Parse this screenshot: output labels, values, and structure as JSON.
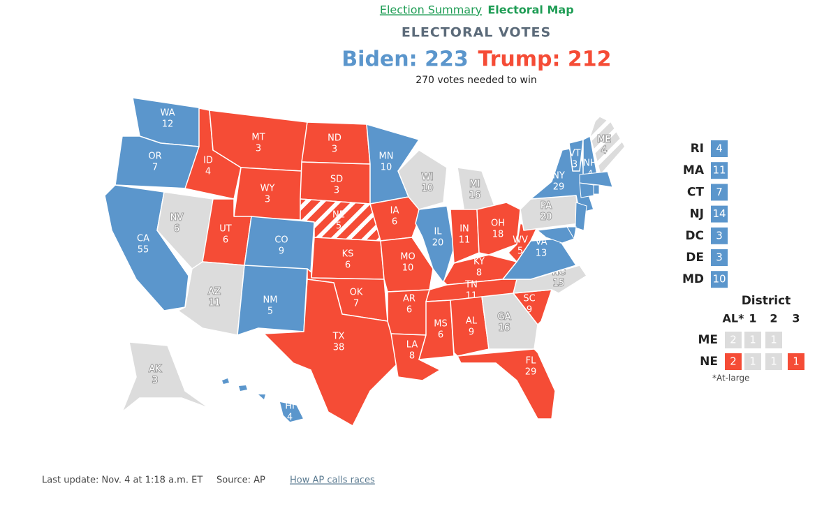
{
  "header": {
    "summary_link": "Election Summary",
    "map_link": "Electoral Map",
    "title": "ELECTORAL VOTES",
    "biden": "Biden: 223",
    "trump": "Trump: 212",
    "subtitle": "270 votes needed to win"
  },
  "colors": {
    "D": "#5b96cc",
    "R": "#f54c36",
    "U": "#dcdcdc"
  },
  "states": [
    {
      "abbr": "WA",
      "votes": 12,
      "status": "D"
    },
    {
      "abbr": "OR",
      "votes": 7,
      "status": "D"
    },
    {
      "abbr": "CA",
      "votes": 55,
      "status": "D"
    },
    {
      "abbr": "NV",
      "votes": 6,
      "status": "U"
    },
    {
      "abbr": "ID",
      "votes": 4,
      "status": "R"
    },
    {
      "abbr": "MT",
      "votes": 3,
      "status": "R"
    },
    {
      "abbr": "WY",
      "votes": 3,
      "status": "R"
    },
    {
      "abbr": "UT",
      "votes": 6,
      "status": "R"
    },
    {
      "abbr": "AZ",
      "votes": 11,
      "status": "U"
    },
    {
      "abbr": "CO",
      "votes": 9,
      "status": "D"
    },
    {
      "abbr": "NM",
      "votes": 5,
      "status": "D"
    },
    {
      "abbr": "ND",
      "votes": 3,
      "status": "R"
    },
    {
      "abbr": "SD",
      "votes": 3,
      "status": "R"
    },
    {
      "abbr": "NE",
      "votes": 5,
      "status": "R",
      "split": true
    },
    {
      "abbr": "KS",
      "votes": 6,
      "status": "R"
    },
    {
      "abbr": "OK",
      "votes": 7,
      "status": "R"
    },
    {
      "abbr": "TX",
      "votes": 38,
      "status": "R"
    },
    {
      "abbr": "MN",
      "votes": 10,
      "status": "D"
    },
    {
      "abbr": "IA",
      "votes": 6,
      "status": "R"
    },
    {
      "abbr": "MO",
      "votes": 10,
      "status": "R"
    },
    {
      "abbr": "AR",
      "votes": 6,
      "status": "R"
    },
    {
      "abbr": "LA",
      "votes": 8,
      "status": "R"
    },
    {
      "abbr": "WI",
      "votes": 10,
      "status": "U"
    },
    {
      "abbr": "MI",
      "votes": 16,
      "status": "U"
    },
    {
      "abbr": "IL",
      "votes": 20,
      "status": "D"
    },
    {
      "abbr": "IN",
      "votes": 11,
      "status": "R"
    },
    {
      "abbr": "OH",
      "votes": 18,
      "status": "R"
    },
    {
      "abbr": "KY",
      "votes": 8,
      "status": "R"
    },
    {
      "abbr": "TN",
      "votes": 11,
      "status": "R"
    },
    {
      "abbr": "MS",
      "votes": 6,
      "status": "R"
    },
    {
      "abbr": "AL",
      "votes": 9,
      "status": "R"
    },
    {
      "abbr": "GA",
      "votes": 16,
      "status": "U"
    },
    {
      "abbr": "FL",
      "votes": 29,
      "status": "R"
    },
    {
      "abbr": "SC",
      "votes": 9,
      "status": "R"
    },
    {
      "abbr": "NC",
      "votes": 15,
      "status": "U"
    },
    {
      "abbr": "VA",
      "votes": 13,
      "status": "D"
    },
    {
      "abbr": "WV",
      "votes": 5,
      "status": "R"
    },
    {
      "abbr": "PA",
      "votes": 20,
      "status": "U"
    },
    {
      "abbr": "NY",
      "votes": 29,
      "status": "D"
    },
    {
      "abbr": "VT",
      "votes": 3,
      "status": "D"
    },
    {
      "abbr": "NH",
      "votes": 4,
      "status": "D"
    },
    {
      "abbr": "ME",
      "votes": 4,
      "status": "U",
      "split": true
    },
    {
      "abbr": "AK",
      "votes": 3,
      "status": "U"
    },
    {
      "abbr": "HI",
      "votes": 4,
      "status": "D"
    }
  ],
  "small_states": [
    {
      "abbr": "RI",
      "votes": 4,
      "status": "D"
    },
    {
      "abbr": "MA",
      "votes": 11,
      "status": "D"
    },
    {
      "abbr": "CT",
      "votes": 7,
      "status": "D"
    },
    {
      "abbr": "NJ",
      "votes": 14,
      "status": "D"
    },
    {
      "abbr": "DC",
      "votes": 3,
      "status": "D"
    },
    {
      "abbr": "DE",
      "votes": 3,
      "status": "D"
    },
    {
      "abbr": "MD",
      "votes": 10,
      "status": "D"
    }
  ],
  "districts": {
    "title": "District",
    "columns": [
      "AL*",
      "1",
      "2",
      "3"
    ],
    "rows": [
      {
        "state": "ME",
        "cells": [
          {
            "votes": 2,
            "status": "U"
          },
          {
            "votes": 1,
            "status": "U"
          },
          {
            "votes": 1,
            "status": "U"
          }
        ]
      },
      {
        "state": "NE",
        "cells": [
          {
            "votes": 2,
            "status": "R"
          },
          {
            "votes": 1,
            "status": "U"
          },
          {
            "votes": 1,
            "status": "U"
          },
          {
            "votes": 1,
            "status": "R"
          }
        ]
      }
    ],
    "note": "*At-large"
  },
  "footer": {
    "updated": "Last update: Nov. 4 at 1:18 a.m. ET",
    "source": "Source: AP",
    "link": "How AP calls races"
  }
}
